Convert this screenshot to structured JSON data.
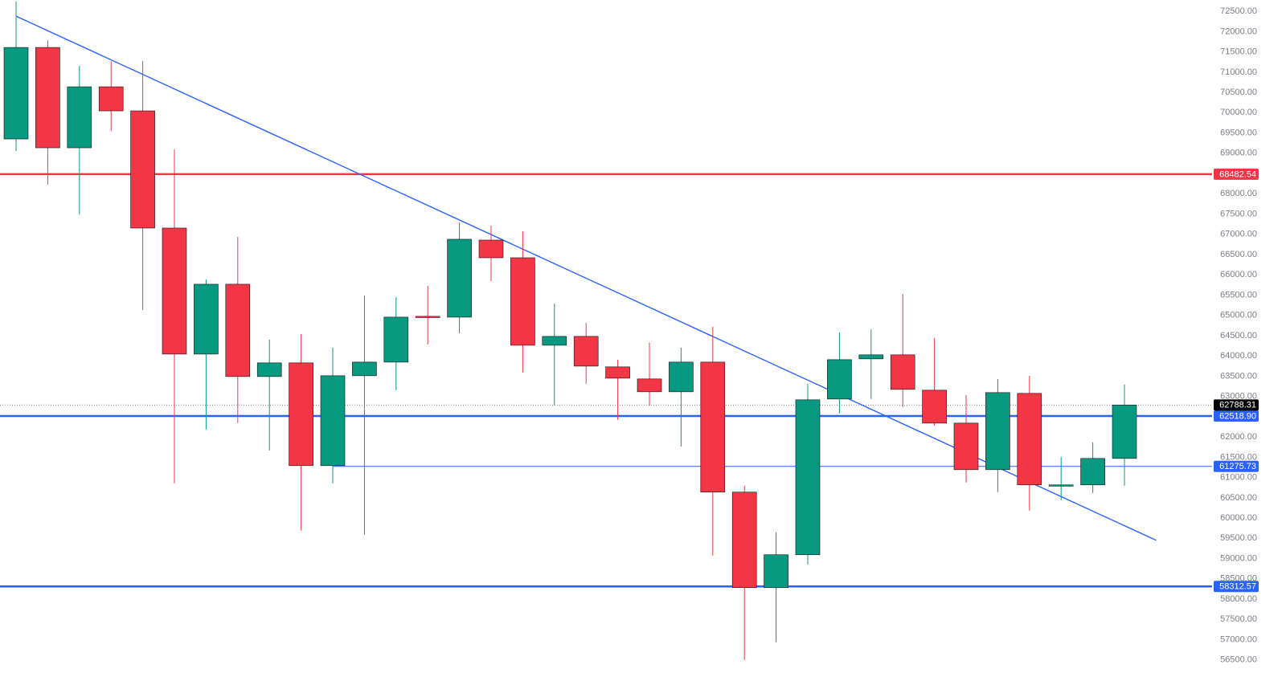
{
  "chart_data": {
    "type": "candlestick",
    "up_color": "#089981",
    "down_color": "#f23645",
    "open": [
      69352,
      71609,
      69134,
      70639,
      70045,
      67154,
      64045,
      65768,
      63491,
      63828,
      61293,
      63511,
      63847,
      64976,
      64956,
      66857,
      66421,
      64263,
      64481,
      63729,
      63432,
      63115,
      63847,
      60640,
      58283,
      59095,
      62937,
      63927,
      64026,
      63154,
      62342,
      61194,
      63075,
      60798,
      60818,
      61471
    ],
    "high": [
      72750,
      71787,
      71154,
      71272,
      71272,
      69094,
      65887,
      66936,
      64402,
      64540,
      64204,
      65491,
      65451,
      65728,
      67293,
      67214,
      67075,
      65293,
      64817,
      63907,
      64323,
      64204,
      64719,
      60798,
      59650,
      63313,
      64580,
      64659,
      65530,
      64441,
      63036,
      63432,
      63511,
      61511,
      61867,
      63293
    ],
    "low": [
      69055,
      68223,
      67491,
      69550,
      65134,
      60858,
      62184,
      62342,
      61669,
      59689,
      60858,
      59590,
      63154,
      64283,
      64560,
      65847,
      63590,
      62778,
      63313,
      62422,
      62778,
      61768,
      59076,
      56500,
      56937,
      58858,
      62580,
      62937,
      62739,
      62283,
      60878,
      60640,
      60184,
      60442,
      60620,
      60798
    ],
    "close": [
      71609,
      69134,
      70639,
      70045,
      67154,
      64045,
      65768,
      63491,
      63828,
      61293,
      63511,
      63847,
      64956,
      64956,
      66877,
      66421,
      64263,
      64481,
      63748,
      63451,
      63115,
      63847,
      60640,
      58283,
      59095,
      62917,
      63907,
      64026,
      63174,
      62342,
      61194,
      63095,
      60818,
      60818,
      61471,
      62788.31
    ],
    "ylim": [
      55980,
      72780
    ],
    "yticks": [
      {
        "value": 56500,
        "label": "56500.00"
      },
      {
        "value": 57000,
        "label": "57000.00"
      },
      {
        "value": 57500,
        "label": "57500.00"
      },
      {
        "value": 58000,
        "label": "58000.00"
      },
      {
        "value": 58500,
        "label": "58500.00"
      },
      {
        "value": 59000,
        "label": "59000.00"
      },
      {
        "value": 59500,
        "label": "59500.00"
      },
      {
        "value": 60000,
        "label": "60000.00"
      },
      {
        "value": 60500,
        "label": "60500.00"
      },
      {
        "value": 61000,
        "label": "61000.00"
      },
      {
        "value": 61500,
        "label": "61500.00"
      },
      {
        "value": 62000,
        "label": "62000.00"
      },
      {
        "value": 62500,
        "label": "62500.00"
      },
      {
        "value": 63000,
        "label": "63000.00"
      },
      {
        "value": 63500,
        "label": "63500.00"
      },
      {
        "value": 64000,
        "label": "64000.00"
      },
      {
        "value": 64500,
        "label": "64500.00"
      },
      {
        "value": 65000,
        "label": "65000.00"
      },
      {
        "value": 65500,
        "label": "65500.00"
      },
      {
        "value": 66000,
        "label": "66000.00"
      },
      {
        "value": 66500,
        "label": "66500.00"
      },
      {
        "value": 67000,
        "label": "67000.00"
      },
      {
        "value": 67500,
        "label": "67500.00"
      },
      {
        "value": 68000,
        "label": "68000.00"
      },
      {
        "value": 68500,
        "label": "68500.00"
      },
      {
        "value": 69000,
        "label": "69000.00"
      },
      {
        "value": 69500,
        "label": "69500.00"
      },
      {
        "value": 70000,
        "label": "70000.00"
      },
      {
        "value": 70500,
        "label": "70500.00"
      },
      {
        "value": 71000,
        "label": "71000.00"
      },
      {
        "value": 71500,
        "label": "71500.00"
      },
      {
        "value": 72000,
        "label": "72000.00"
      },
      {
        "value": 72500,
        "label": "72500.00"
      }
    ],
    "levels": [
      {
        "value": 68482.54,
        "label": "68482.54",
        "color": "#f23645",
        "width": 2.5,
        "from_index": 0
      },
      {
        "value": 62518.9,
        "label": "62518.90",
        "color": "#2962ff",
        "width": 2.5,
        "from_index": 0
      },
      {
        "value": 61275.73,
        "label": "61275.73",
        "color": "#2962ff",
        "width": 1,
        "from_index": 10
      },
      {
        "value": 58312.57,
        "label": "58312.57",
        "color": "#2962ff",
        "width": 2.5,
        "from_index": 0
      }
    ],
    "last_price": {
      "value": 62788.31,
      "label": "62788.31"
    },
    "trendline": {
      "index": [
        0,
        36
      ],
      "values": [
        72381,
        59452
      ],
      "color": "#2962ff"
    }
  }
}
